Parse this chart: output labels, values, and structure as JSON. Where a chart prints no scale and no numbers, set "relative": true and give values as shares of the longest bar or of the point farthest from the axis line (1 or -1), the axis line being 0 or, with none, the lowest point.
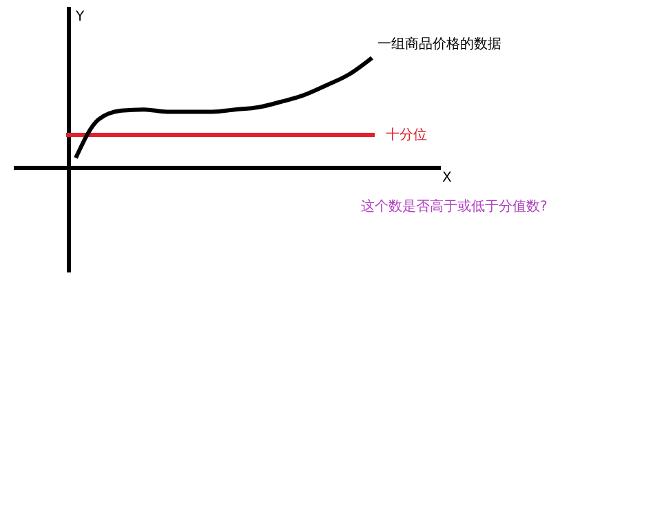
{
  "chart_data": {
    "type": "line",
    "relative": true,
    "xlabel": "X",
    "ylabel": "Y",
    "categories": [
      null,
      null,
      null,
      null,
      null,
      null,
      null,
      null,
      null,
      null,
      null,
      null,
      null,
      null
    ],
    "series": [
      {
        "name": "一组商品价格的数据",
        "color": "#000000",
        "values": [
          0.09,
          0.44,
          0.52,
          0.53,
          0.51,
          0.51,
          0.51,
          0.53,
          0.55,
          0.6,
          0.66,
          0.75,
          0.85,
          1
        ]
      }
    ],
    "ref_lines": [
      {
        "axis": "y",
        "value": 0.3,
        "label": "十分位",
        "color": "#e0202a"
      }
    ],
    "annotations": [
      "这个数是否高于或低于分值数?"
    ]
  }
}
